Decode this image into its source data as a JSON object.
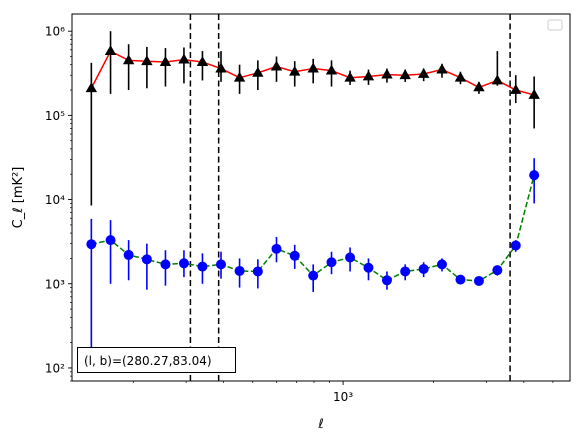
{
  "chart_data": {
    "type": "line",
    "xscale": "log",
    "yscale": "log",
    "xlabel": "ℓ",
    "ylabel": "C_ℓ [mK²]",
    "xlim": [
      125,
      5700
    ],
    "ylim": [
      70,
      1600000
    ],
    "x_ticklabels": [
      "10³"
    ],
    "y_ticklabels": [
      "10²",
      "10³",
      "10⁴",
      "10⁵",
      "10⁶"
    ],
    "legend": "empty box, top-right",
    "annotation": "(l, b)=(280.27,83.04)",
    "vlines": [
      310,
      385,
      3600
    ],
    "series": [
      {
        "line_color": "#ff0000",
        "line_style": "solid",
        "marker": "triangle",
        "marker_color": "#000000",
        "x": [
          145,
          168,
          193,
          222,
          256,
          295,
          340,
          392,
          452,
          520,
          600,
          690,
          795,
          915,
          1055,
          1215,
          1400,
          1610,
          1855,
          2135,
          2460,
          2835,
          3265,
          3760,
          4330,
          4800
        ],
        "y": [
          210000,
          580000,
          450000,
          440000,
          430000,
          460000,
          430000,
          360000,
          280000,
          320000,
          380000,
          330000,
          360000,
          340000,
          280000,
          290000,
          305000,
          300000,
          310000,
          350000,
          280000,
          215000,
          260000,
          200000,
          175000,
          0
        ],
        "err_low": [
          8500,
          180000,
          200000,
          210000,
          220000,
          240000,
          260000,
          250000,
          180000,
          200000,
          250000,
          220000,
          240000,
          220000,
          230000,
          230000,
          245000,
          250000,
          255000,
          280000,
          235000,
          180000,
          225000,
          140000,
          70000,
          0
        ],
        "err_high": [
          420000,
          1000000,
          700000,
          650000,
          630000,
          640000,
          580000,
          580000,
          400000,
          450000,
          500000,
          440000,
          470000,
          450000,
          340000,
          350000,
          360000,
          350000,
          360000,
          410000,
          330000,
          250000,
          580000,
          300000,
          290000,
          0
        ]
      },
      {
        "line_color": "#008000",
        "line_style": "dashed",
        "marker": "circle",
        "marker_color": "#0000ff",
        "x": [
          145,
          168,
          193,
          222,
          256,
          295,
          340,
          392,
          452,
          520,
          600,
          690,
          795,
          915,
          1055,
          1215,
          1400,
          1610,
          1855,
          2135,
          2460,
          2835,
          3265,
          3760,
          4330,
          4800
        ],
        "y": [
          2950,
          3300,
          2200,
          1950,
          1700,
          1750,
          1600,
          1700,
          1420,
          1400,
          2600,
          2150,
          1250,
          1800,
          2050,
          1550,
          1100,
          1400,
          1500,
          1700,
          1120,
          1080,
          1450,
          2850,
          19500,
          0
        ],
        "err_low": [
          150,
          1000,
          1100,
          850,
          950,
          1200,
          1000,
          1150,
          900,
          880,
          1800,
          1500,
          800,
          1300,
          1400,
          1100,
          850,
          1100,
          1200,
          1400,
          1000,
          980,
          1250,
          2400,
          9000,
          0
        ],
        "err_high": [
          5900,
          5700,
          3300,
          3000,
          2500,
          2500,
          2300,
          2400,
          2000,
          1950,
          3600,
          2900,
          1700,
          2400,
          2700,
          2000,
          1400,
          1700,
          1800,
          2000,
          1250,
          1180,
          1650,
          3300,
          31000,
          0
        ]
      }
    ]
  }
}
